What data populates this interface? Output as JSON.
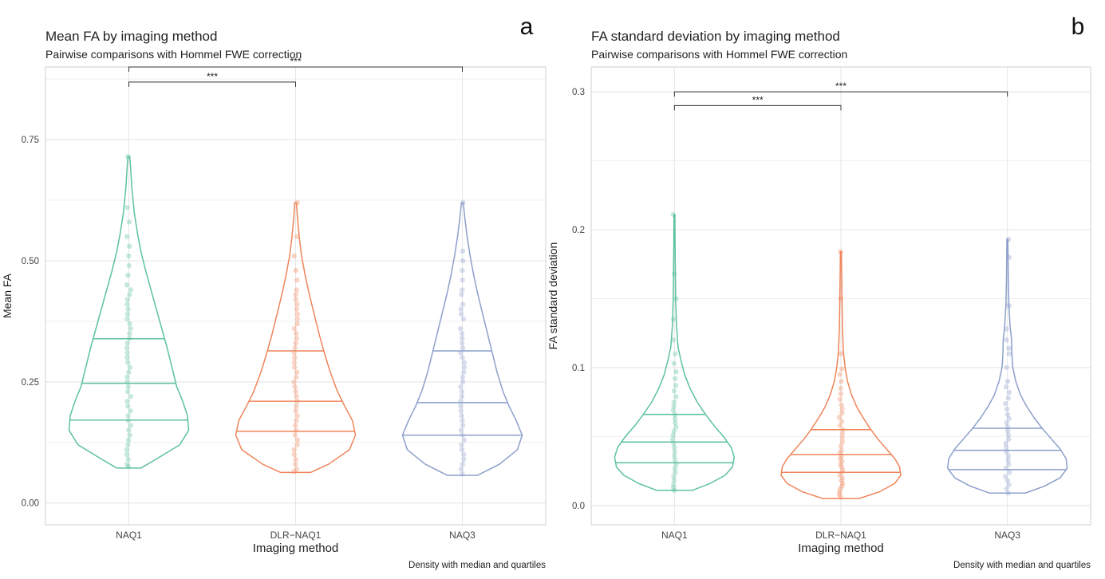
{
  "colors": {
    "NAQ1": "#5cc1a0",
    "DLR-NAQ1": "#f0845a",
    "NAQ3": "#8c9fcb",
    "grid": "#e6e6e6",
    "frame": "#cfcfcf",
    "text": "#222222"
  },
  "chart_data": [
    {
      "panel_letter": "a",
      "type": "violin",
      "title": "Mean FA by imaging method",
      "subtitle": "Pairwise comparisons with Hommel FWE correction",
      "xlabel": "Imaging method",
      "ylabel": "Mean FA",
      "caption": "Density with median and quartiles",
      "categories": [
        "NAQ1",
        "DLR−NAQ1",
        "NAQ3"
      ],
      "ylim": [
        -0.045,
        0.9
      ],
      "yticks": [
        0.0,
        0.25,
        0.5,
        0.75
      ],
      "ytick_labels": [
        "0.00",
        "0.25",
        "0.50",
        "0.75"
      ],
      "series": [
        {
          "name": "NAQ1",
          "min": 0.072,
          "max": 0.715,
          "q1": 0.171,
          "median": 0.247,
          "q3": 0.339,
          "density": [
            [
              0.072,
              0.2
            ],
            [
              0.09,
              0.45
            ],
            [
              0.12,
              0.85
            ],
            [
              0.15,
              1.0
            ],
            [
              0.18,
              0.98
            ],
            [
              0.21,
              0.9
            ],
            [
              0.24,
              0.8
            ],
            [
              0.28,
              0.72
            ],
            [
              0.32,
              0.64
            ],
            [
              0.36,
              0.55
            ],
            [
              0.4,
              0.46
            ],
            [
              0.44,
              0.37
            ],
            [
              0.48,
              0.28
            ],
            [
              0.52,
              0.2
            ],
            [
              0.56,
              0.14
            ],
            [
              0.6,
              0.09
            ],
            [
              0.65,
              0.05
            ],
            [
              0.7,
              0.025
            ],
            [
              0.715,
              0.015
            ]
          ],
          "points": [
            0.075,
            0.08,
            0.09,
            0.1,
            0.11,
            0.12,
            0.13,
            0.14,
            0.15,
            0.16,
            0.17,
            0.18,
            0.19,
            0.2,
            0.21,
            0.22,
            0.23,
            0.24,
            0.25,
            0.26,
            0.27,
            0.28,
            0.29,
            0.3,
            0.31,
            0.32,
            0.33,
            0.34,
            0.35,
            0.36,
            0.37,
            0.38,
            0.39,
            0.4,
            0.41,
            0.42,
            0.43,
            0.44,
            0.45,
            0.47,
            0.49,
            0.51,
            0.53,
            0.55,
            0.58,
            0.61,
            0.715
          ]
        },
        {
          "name": "DLR−NAQ1",
          "min": 0.063,
          "max": 0.62,
          "q1": 0.148,
          "median": 0.21,
          "q3": 0.314,
          "density": [
            [
              0.063,
              0.25
            ],
            [
              0.08,
              0.55
            ],
            [
              0.11,
              0.9
            ],
            [
              0.14,
              1.0
            ],
            [
              0.17,
              0.95
            ],
            [
              0.2,
              0.82
            ],
            [
              0.23,
              0.7
            ],
            [
              0.27,
              0.58
            ],
            [
              0.31,
              0.48
            ],
            [
              0.35,
              0.39
            ],
            [
              0.39,
              0.31
            ],
            [
              0.43,
              0.23
            ],
            [
              0.47,
              0.16
            ],
            [
              0.51,
              0.1
            ],
            [
              0.55,
              0.06
            ],
            [
              0.59,
              0.03
            ],
            [
              0.62,
              0.015
            ]
          ],
          "points": [
            0.065,
            0.07,
            0.08,
            0.09,
            0.1,
            0.11,
            0.12,
            0.13,
            0.14,
            0.15,
            0.16,
            0.17,
            0.18,
            0.19,
            0.2,
            0.21,
            0.22,
            0.23,
            0.24,
            0.25,
            0.26,
            0.27,
            0.28,
            0.29,
            0.3,
            0.31,
            0.32,
            0.33,
            0.34,
            0.35,
            0.36,
            0.37,
            0.38,
            0.39,
            0.4,
            0.41,
            0.42,
            0.43,
            0.44,
            0.46,
            0.48,
            0.51,
            0.55,
            0.62
          ]
        },
        {
          "name": "NAQ3",
          "min": 0.057,
          "max": 0.62,
          "q1": 0.14,
          "median": 0.207,
          "q3": 0.314,
          "density": [
            [
              0.057,
              0.25
            ],
            [
              0.08,
              0.62
            ],
            [
              0.11,
              0.92
            ],
            [
              0.14,
              1.0
            ],
            [
              0.17,
              0.9
            ],
            [
              0.2,
              0.78
            ],
            [
              0.23,
              0.68
            ],
            [
              0.27,
              0.58
            ],
            [
              0.31,
              0.5
            ],
            [
              0.35,
              0.42
            ],
            [
              0.39,
              0.34
            ],
            [
              0.43,
              0.26
            ],
            [
              0.47,
              0.19
            ],
            [
              0.51,
              0.13
            ],
            [
              0.55,
              0.08
            ],
            [
              0.59,
              0.04
            ],
            [
              0.62,
              0.015
            ]
          ],
          "points": [
            0.06,
            0.07,
            0.08,
            0.09,
            0.1,
            0.11,
            0.12,
            0.13,
            0.14,
            0.15,
            0.16,
            0.17,
            0.18,
            0.19,
            0.2,
            0.21,
            0.22,
            0.23,
            0.24,
            0.25,
            0.26,
            0.27,
            0.28,
            0.29,
            0.3,
            0.31,
            0.32,
            0.33,
            0.34,
            0.35,
            0.36,
            0.38,
            0.39,
            0.4,
            0.41,
            0.43,
            0.44,
            0.46,
            0.48,
            0.5,
            0.52,
            0.62
          ]
        }
      ],
      "comparisons": [
        {
          "from": "NAQ1",
          "to": "DLR−NAQ1",
          "y": 0.869,
          "label": "***"
        },
        {
          "from": "NAQ1",
          "to": "NAQ3",
          "y": 0.9,
          "label": "***"
        }
      ]
    },
    {
      "panel_letter": "b",
      "type": "violin",
      "title": "FA standard deviation by imaging method",
      "subtitle": "Pairwise comparisons with Hommel FWE correction",
      "xlabel": "Imaging method",
      "ylabel": "FA standard deviation",
      "caption": "Density with median and quartiles",
      "categories": [
        "NAQ1",
        "DLR−NAQ1",
        "NAQ3"
      ],
      "ylim": [
        -0.014,
        0.318
      ],
      "yticks": [
        0.0,
        0.1,
        0.2,
        0.3
      ],
      "ytick_labels": [
        "0.0",
        "0.1",
        "0.2",
        "0.3"
      ],
      "series": [
        {
          "name": "NAQ1",
          "min": 0.011,
          "max": 0.211,
          "q1": 0.031,
          "median": 0.046,
          "q3": 0.066,
          "density": [
            [
              0.011,
              0.3
            ],
            [
              0.016,
              0.6
            ],
            [
              0.022,
              0.85
            ],
            [
              0.028,
              0.97
            ],
            [
              0.035,
              1.0
            ],
            [
              0.042,
              0.95
            ],
            [
              0.05,
              0.82
            ],
            [
              0.058,
              0.66
            ],
            [
              0.066,
              0.52
            ],
            [
              0.075,
              0.38
            ],
            [
              0.085,
              0.26
            ],
            [
              0.095,
              0.17
            ],
            [
              0.105,
              0.11
            ],
            [
              0.115,
              0.06
            ],
            [
              0.13,
              0.035
            ],
            [
              0.15,
              0.02
            ],
            [
              0.17,
              0.015
            ],
            [
              0.19,
              0.01
            ],
            [
              0.211,
              0.008
            ]
          ],
          "points": [
            0.011,
            0.013,
            0.015,
            0.018,
            0.021,
            0.024,
            0.027,
            0.03,
            0.033,
            0.036,
            0.039,
            0.042,
            0.045,
            0.048,
            0.051,
            0.054,
            0.057,
            0.06,
            0.063,
            0.066,
            0.069,
            0.072,
            0.075,
            0.079,
            0.083,
            0.087,
            0.092,
            0.097,
            0.103,
            0.11,
            0.12,
            0.135,
            0.15,
            0.168,
            0.211
          ]
        },
        {
          "name": "DLR−NAQ1",
          "min": 0.005,
          "max": 0.184,
          "q1": 0.024,
          "median": 0.037,
          "q3": 0.055,
          "density": [
            [
              0.005,
              0.3
            ],
            [
              0.01,
              0.65
            ],
            [
              0.016,
              0.9
            ],
            [
              0.022,
              1.0
            ],
            [
              0.028,
              0.98
            ],
            [
              0.034,
              0.9
            ],
            [
              0.041,
              0.76
            ],
            [
              0.048,
              0.62
            ],
            [
              0.055,
              0.5
            ],
            [
              0.063,
              0.38
            ],
            [
              0.071,
              0.27
            ],
            [
              0.08,
              0.18
            ],
            [
              0.09,
              0.11
            ],
            [
              0.1,
              0.07
            ],
            [
              0.112,
              0.04
            ],
            [
              0.13,
              0.025
            ],
            [
              0.15,
              0.018
            ],
            [
              0.17,
              0.012
            ],
            [
              0.184,
              0.008
            ]
          ],
          "points": [
            0.006,
            0.008,
            0.01,
            0.012,
            0.014,
            0.016,
            0.018,
            0.02,
            0.022,
            0.024,
            0.026,
            0.028,
            0.03,
            0.032,
            0.034,
            0.036,
            0.038,
            0.04,
            0.043,
            0.046,
            0.049,
            0.052,
            0.055,
            0.058,
            0.061,
            0.064,
            0.067,
            0.07,
            0.073,
            0.077,
            0.081,
            0.085,
            0.09,
            0.095,
            0.099,
            0.11,
            0.15,
            0.184
          ]
        },
        {
          "name": "NAQ3",
          "min": 0.009,
          "max": 0.193,
          "q1": 0.026,
          "median": 0.04,
          "q3": 0.056,
          "density": [
            [
              0.009,
              0.3
            ],
            [
              0.014,
              0.62
            ],
            [
              0.02,
              0.88
            ],
            [
              0.027,
              1.0
            ],
            [
              0.034,
              0.98
            ],
            [
              0.041,
              0.88
            ],
            [
              0.048,
              0.74
            ],
            [
              0.056,
              0.58
            ],
            [
              0.064,
              0.44
            ],
            [
              0.072,
              0.32
            ],
            [
              0.08,
              0.22
            ],
            [
              0.09,
              0.14
            ],
            [
              0.1,
              0.09
            ],
            [
              0.11,
              0.075
            ],
            [
              0.12,
              0.07
            ],
            [
              0.13,
              0.045
            ],
            [
              0.145,
              0.025
            ],
            [
              0.165,
              0.015
            ],
            [
              0.193,
              0.008
            ]
          ],
          "points": [
            0.009,
            0.012,
            0.015,
            0.018,
            0.021,
            0.024,
            0.027,
            0.03,
            0.033,
            0.036,
            0.039,
            0.042,
            0.045,
            0.048,
            0.051,
            0.054,
            0.057,
            0.06,
            0.063,
            0.066,
            0.07,
            0.074,
            0.078,
            0.082,
            0.086,
            0.09,
            0.1,
            0.11,
            0.114,
            0.12,
            0.128,
            0.145,
            0.18,
            0.193
          ]
        }
      ],
      "comparisons": [
        {
          "from": "NAQ1",
          "to": "DLR−NAQ1",
          "y": 0.29,
          "label": "***"
        },
        {
          "from": "NAQ1",
          "to": "NAQ3",
          "y": 0.3,
          "label": "***"
        }
      ]
    }
  ]
}
